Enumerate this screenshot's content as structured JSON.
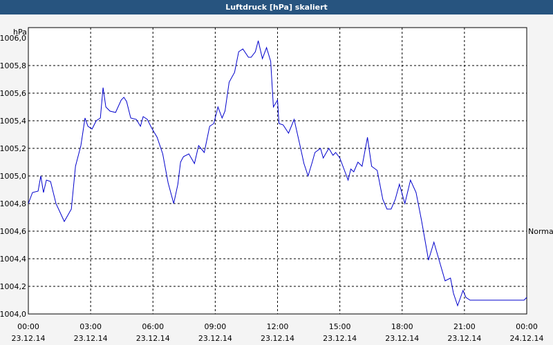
{
  "title": "Luftdruck [hPa] skaliert",
  "colors": {
    "title_bg": "#27547f",
    "title_fg": "#ffffff",
    "line": "#0000cc",
    "plot_bg": "#ffffff",
    "page_bg": "#f4f4f4",
    "grid": "#000000"
  },
  "chart_data": {
    "type": "line",
    "title": "Luftdruck [hPa] skaliert",
    "y_unit_label": "hPa",
    "ylim": [
      1004.0,
      1006.0
    ],
    "y_ticks": [
      "1006,0",
      "1005,8",
      "1005,6",
      "1005,4",
      "1005,2",
      "1005,0",
      "1004,8",
      "1004,6",
      "1004,4",
      "1004,2",
      "1004,0"
    ],
    "y_tick_values": [
      1006.0,
      1005.8,
      1005.6,
      1005.4,
      1005.2,
      1005.0,
      1004.8,
      1004.6,
      1004.4,
      1004.2,
      1004.0
    ],
    "xlim": [
      0,
      24
    ],
    "x_ticks": [
      {
        "time": "00:00",
        "date": "23.12.14",
        "hour": 0
      },
      {
        "time": "03:00",
        "date": "23.12.14",
        "hour": 3
      },
      {
        "time": "06:00",
        "date": "23.12.14",
        "hour": 6
      },
      {
        "time": "09:00",
        "date": "23.12.14",
        "hour": 9
      },
      {
        "time": "12:00",
        "date": "23.12.14",
        "hour": 12
      },
      {
        "time": "15:00",
        "date": "23.12.14",
        "hour": 15
      },
      {
        "time": "18:00",
        "date": "23.12.14",
        "hour": 18
      },
      {
        "time": "21:00",
        "date": "23.12.14",
        "hour": 21
      },
      {
        "time": "00:00",
        "date": "24.12.14",
        "hour": 24
      }
    ],
    "grid": true,
    "annotation": {
      "text": "Normal",
      "side": "right",
      "value": 1004.6
    },
    "series": [
      {
        "x": [
          0.0,
          0.2,
          0.47,
          0.6,
          0.73,
          0.87,
          1.07,
          1.33,
          1.73,
          2.07,
          2.27,
          2.53,
          2.73,
          2.87,
          3.07,
          3.27,
          3.47,
          3.6,
          3.73,
          3.93,
          4.2,
          4.47,
          4.6,
          4.73,
          4.93,
          5.2,
          5.4,
          5.53,
          5.73,
          5.93,
          6.2,
          6.47,
          6.73,
          7.0,
          7.2,
          7.33,
          7.47,
          7.73,
          8.0,
          8.2,
          8.47,
          8.73,
          8.93,
          9.13,
          9.33,
          9.47,
          9.67,
          9.93,
          10.13,
          10.33,
          10.6,
          10.73,
          10.93,
          11.07,
          11.27,
          11.47,
          11.67,
          11.8,
          12.0,
          12.07,
          12.27,
          12.53,
          12.8,
          13.07,
          13.27,
          13.47,
          13.67,
          13.8,
          14.07,
          14.2,
          14.47,
          14.67,
          14.8,
          15.0,
          15.2,
          15.4,
          15.53,
          15.67,
          15.87,
          16.07,
          16.33,
          16.53,
          16.8,
          17.07,
          17.27,
          17.47,
          17.67,
          17.87,
          18.13,
          18.4,
          18.67,
          18.93,
          19.13,
          19.27,
          19.53,
          19.8,
          20.07,
          20.33,
          20.47,
          20.67,
          20.93,
          21.07,
          21.27,
          21.47,
          21.6,
          21.87,
          22.13,
          22.4,
          22.67,
          22.93,
          23.13,
          23.4,
          23.6,
          23.87,
          24.0
        ],
        "y": [
          1004.8,
          1004.88,
          1004.89,
          1005.0,
          1004.88,
          1004.97,
          1004.96,
          1004.8,
          1004.67,
          1004.76,
          1005.07,
          1005.22,
          1005.42,
          1005.36,
          1005.34,
          1005.4,
          1005.42,
          1005.64,
          1005.5,
          1005.47,
          1005.46,
          1005.55,
          1005.57,
          1005.54,
          1005.42,
          1005.41,
          1005.36,
          1005.43,
          1005.41,
          1005.35,
          1005.28,
          1005.16,
          1004.95,
          1004.8,
          1004.94,
          1005.1,
          1005.14,
          1005.16,
          1005.09,
          1005.22,
          1005.17,
          1005.36,
          1005.38,
          1005.5,
          1005.42,
          1005.47,
          1005.68,
          1005.75,
          1005.9,
          1005.92,
          1005.86,
          1005.86,
          1005.9,
          1005.98,
          1005.85,
          1005.93,
          1005.83,
          1005.5,
          1005.55,
          1005.38,
          1005.37,
          1005.31,
          1005.41,
          1005.23,
          1005.09,
          1005.0,
          1005.1,
          1005.17,
          1005.2,
          1005.13,
          1005.2,
          1005.15,
          1005.17,
          1005.13,
          1005.05,
          1004.97,
          1005.05,
          1005.03,
          1005.1,
          1005.07,
          1005.28,
          1005.07,
          1005.04,
          1004.83,
          1004.76,
          1004.76,
          1004.83,
          1004.94,
          1004.8,
          1004.97,
          1004.88,
          1004.68,
          1004.51,
          1004.39,
          1004.52,
          1004.38,
          1004.24,
          1004.26,
          1004.15,
          1004.06,
          1004.17,
          1004.12,
          1004.1,
          1004.1,
          1004.1,
          1004.1,
          1004.1,
          1004.1,
          1004.1,
          1004.1,
          1004.1,
          1004.1,
          1004.1,
          1004.1,
          1004.12
        ]
      }
    ]
  }
}
